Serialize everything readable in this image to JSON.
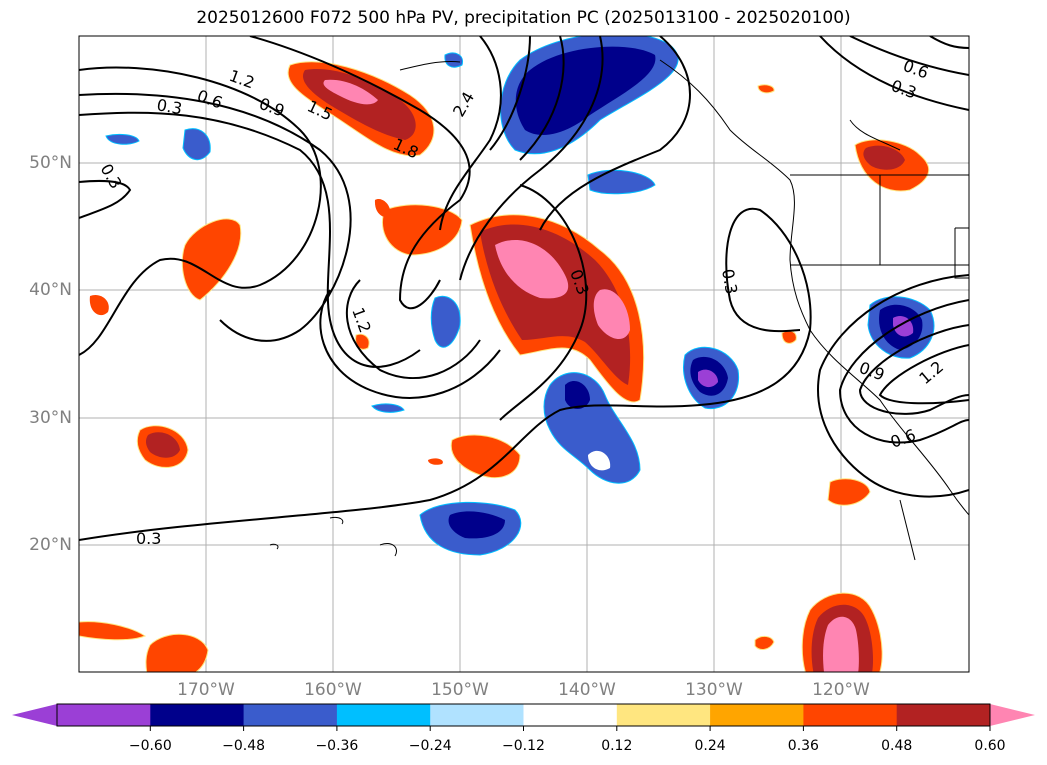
{
  "title": "2025012600 F072 500 hPa PV, precipitation PC (2025013100 - 2025020100)",
  "lat_labels": [
    "50°N",
    "40°N",
    "30°N",
    "20°N"
  ],
  "lon_labels": [
    "170°W",
    "160°W",
    "150°W",
    "140°W",
    "130°W",
    "120°W"
  ],
  "contour_labels": [
    "1.2",
    "0.6",
    "0.9",
    "1.5",
    "1.8",
    "2.4",
    "0.3",
    "0.3",
    "0.6",
    "0.3",
    "1.2",
    "0.3",
    "0.3",
    "0.9",
    "1.2",
    "0.6",
    "0.3"
  ],
  "colorbar": {
    "ticks": [
      "−0.60",
      "−0.48",
      "−0.36",
      "−0.24",
      "−0.12",
      "0.12",
      "0.24",
      "0.36",
      "0.48",
      "0.60"
    ],
    "colors": [
      "#9b3fd6",
      "#00008b",
      "#3a5ccc",
      "#00bfff",
      "#b0e2ff",
      "#ffffff",
      "#ffe680",
      "#ffa500",
      "#ff4500",
      "#b22222",
      "#ff85b2"
    ]
  }
}
